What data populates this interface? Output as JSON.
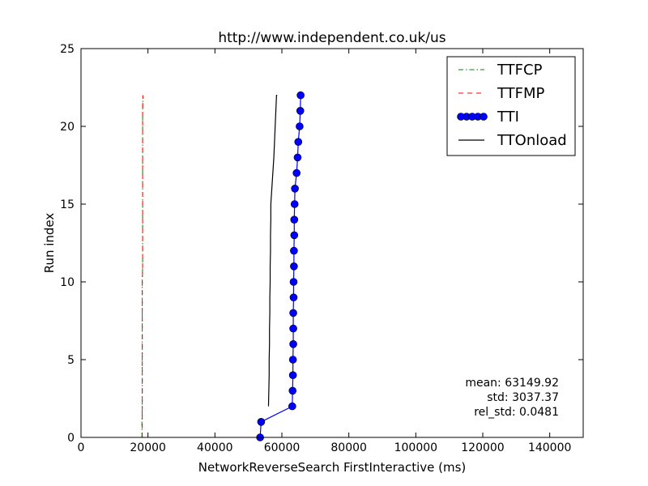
{
  "chart_data": {
    "type": "line",
    "title": "http://www.independent.co.uk/us",
    "xlabel": "NetworkReverseSearch FirstInteractive (ms)",
    "ylabel": "Run index",
    "xlim": [
      0,
      150000
    ],
    "ylim": [
      0,
      25
    ],
    "xticks": [
      0,
      20000,
      40000,
      60000,
      80000,
      100000,
      120000,
      140000
    ],
    "yticks": [
      0,
      5,
      10,
      15,
      20,
      25
    ],
    "grid": false,
    "legend_position": "top-right",
    "series": [
      {
        "name": "TTFCP",
        "style": "dashdot",
        "color": "#008000",
        "x": [
          18200,
          18200,
          18300,
          18300,
          18300,
          18300,
          18300,
          18300,
          18300,
          18300,
          18300,
          18400,
          18400,
          18400,
          18400,
          18400,
          18400,
          18400,
          18400,
          18400,
          18400,
          18400,
          18500
        ],
        "y": [
          0,
          1,
          2,
          3,
          4,
          5,
          6,
          7,
          8,
          9,
          10,
          11,
          12,
          13,
          14,
          15,
          16,
          17,
          18,
          19,
          20,
          21,
          22
        ]
      },
      {
        "name": "TTFMP",
        "style": "dashed",
        "color": "#ff0000",
        "x": [
          18300,
          18300,
          18300,
          18300,
          18300,
          18300,
          18300,
          18300,
          18300,
          18300,
          18300,
          18400,
          18400,
          18400,
          18400,
          18400,
          18400,
          18400,
          18400,
          18400,
          18400,
          18400,
          18500
        ],
        "y": [
          0,
          1,
          2,
          3,
          4,
          5,
          6,
          7,
          8,
          9,
          10,
          11,
          12,
          13,
          14,
          15,
          16,
          17,
          18,
          19,
          20,
          21,
          22
        ]
      },
      {
        "name": "TTI",
        "style": "line-markers",
        "color": "#0000ff",
        "x": [
          53500,
          53800,
          63100,
          63200,
          63300,
          63300,
          63400,
          63400,
          63400,
          63500,
          63500,
          63600,
          63600,
          63700,
          63700,
          63800,
          63900,
          64400,
          64700,
          64900,
          65300,
          65500,
          65600
        ],
        "y": [
          0,
          1,
          2,
          3,
          4,
          5,
          6,
          7,
          8,
          9,
          10,
          11,
          12,
          13,
          14,
          15,
          16,
          17,
          18,
          19,
          20,
          21,
          22
        ]
      },
      {
        "name": "TTOnload",
        "style": "solid",
        "color": "#000000",
        "x": [
          56000,
          56100,
          56200,
          56200,
          56300,
          56300,
          56400,
          56400,
          56500,
          56500,
          56600,
          56600,
          56700,
          56700,
          57000,
          57300,
          57600,
          57800,
          58000,
          58200,
          58400,
          58600
        ],
        "y": [
          2,
          3,
          4,
          5,
          6,
          7,
          8,
          9,
          10,
          11,
          12,
          13,
          14,
          15,
          16,
          17,
          18,
          19,
          20,
          21,
          22,
          22
        ]
      }
    ],
    "stats": {
      "mean": "mean: 63149.92",
      "std": "std: 3037.37",
      "rel_std": "rel_std: 0.0481"
    }
  }
}
